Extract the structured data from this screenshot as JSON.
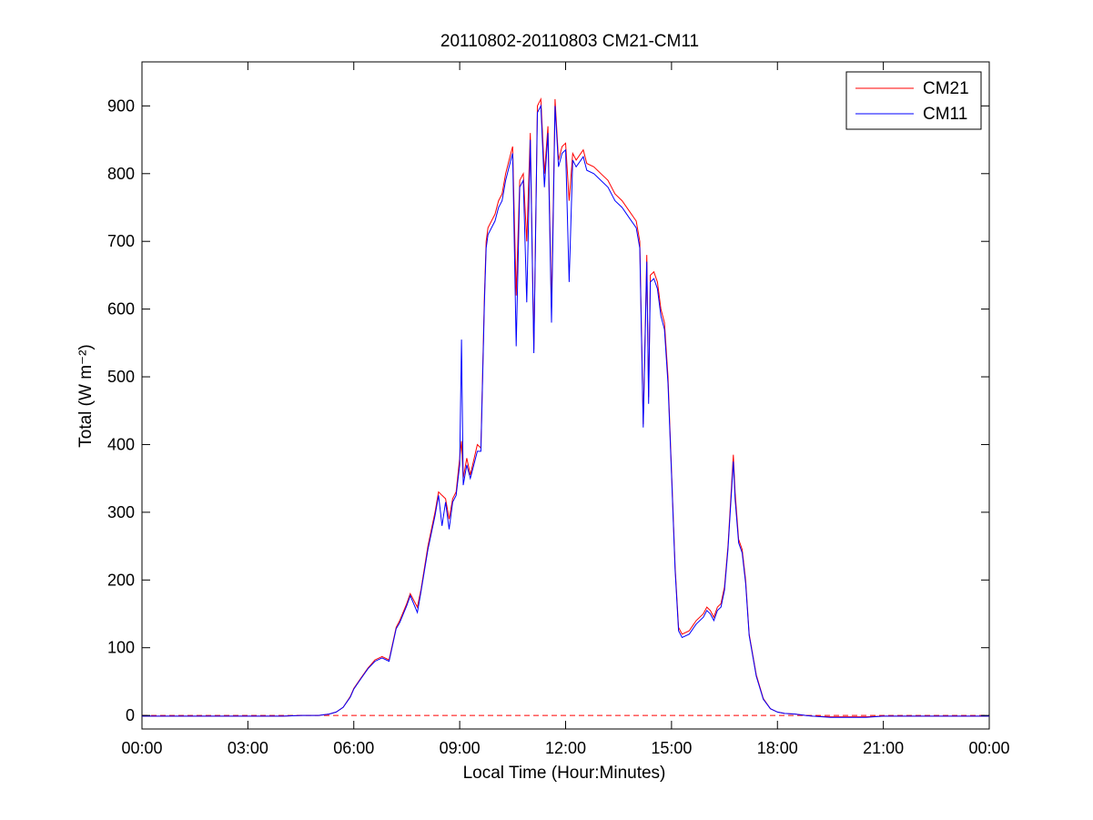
{
  "chart_data": {
    "type": "line",
    "title": "20110802-20110803 CM21-CM11",
    "xlabel": "Local Time (Hour:Minutes)",
    "ylabel": "Total (W m⁻²)",
    "xlim_hours": [
      0,
      24
    ],
    "ylim": [
      -20,
      965
    ],
    "x_ticks": [
      0,
      3,
      6,
      9,
      12,
      15,
      18,
      21,
      24
    ],
    "x_tick_labels": [
      "00:00",
      "03:00",
      "06:00",
      "09:00",
      "12:00",
      "15:00",
      "18:00",
      "21:00",
      "00:00"
    ],
    "y_ticks": [
      0,
      100,
      200,
      300,
      400,
      500,
      600,
      700,
      800,
      900
    ],
    "y_tick_labels": [
      "0",
      "100",
      "200",
      "300",
      "400",
      "500",
      "600",
      "700",
      "800",
      "900"
    ],
    "grid": false,
    "legend_position": "top-right",
    "reference_line": {
      "y": 0,
      "style": "dashed",
      "color": "#ff0000"
    },
    "series": [
      {
        "name": "CM21",
        "color": "#ff0000",
        "x": [
          0,
          1,
          2,
          3,
          4,
          4.5,
          5.0,
          5.3,
          5.5,
          5.7,
          5.9,
          6.0,
          6.2,
          6.4,
          6.6,
          6.8,
          7.0,
          7.2,
          7.3,
          7.5,
          7.6,
          7.8,
          7.9,
          8.1,
          8.3,
          8.4,
          8.5,
          8.6,
          8.7,
          8.8,
          8.9,
          9.0,
          9.05,
          9.1,
          9.2,
          9.3,
          9.5,
          9.6,
          9.7,
          9.75,
          9.8,
          10.0,
          10.1,
          10.2,
          10.3,
          10.4,
          10.5,
          10.6,
          10.7,
          10.8,
          10.9,
          11.0,
          11.1,
          11.2,
          11.3,
          11.4,
          11.5,
          11.6,
          11.7,
          11.8,
          11.9,
          12.0,
          12.1,
          12.2,
          12.3,
          12.5,
          12.6,
          12.8,
          13.0,
          13.2,
          13.4,
          13.6,
          13.8,
          14.0,
          14.1,
          14.2,
          14.3,
          14.35,
          14.4,
          14.5,
          14.6,
          14.7,
          14.8,
          14.9,
          15.0,
          15.1,
          15.2,
          15.3,
          15.5,
          15.7,
          15.9,
          16.0,
          16.1,
          16.2,
          16.3,
          16.4,
          16.5,
          16.6,
          16.75,
          16.8,
          16.9,
          17.0,
          17.1,
          17.2,
          17.4,
          17.6,
          17.8,
          18.0,
          18.2,
          18.5,
          18.8,
          19.0,
          19.5,
          20.0,
          20.5,
          21.0,
          22.0,
          23.0,
          24.0
        ],
        "values": [
          -1,
          -1,
          -1,
          -1,
          -1,
          0,
          0,
          2,
          5,
          12,
          28,
          40,
          55,
          70,
          82,
          87,
          82,
          130,
          140,
          165,
          180,
          160,
          185,
          250,
          300,
          330,
          325,
          320,
          290,
          320,
          330,
          380,
          405,
          350,
          380,
          355,
          400,
          395,
          620,
          700,
          720,
          740,
          760,
          770,
          800,
          820,
          840,
          620,
          790,
          800,
          700,
          860,
          540,
          900,
          910,
          800,
          870,
          600,
          910,
          820,
          840,
          845,
          760,
          830,
          820,
          835,
          815,
          810,
          800,
          790,
          770,
          760,
          745,
          730,
          700,
          430,
          680,
          470,
          650,
          655,
          640,
          600,
          580,
          500,
          360,
          220,
          130,
          120,
          125,
          140,
          150,
          160,
          155,
          145,
          160,
          165,
          190,
          250,
          385,
          330,
          260,
          245,
          200,
          120,
          60,
          25,
          10,
          5,
          3,
          2,
          0,
          -1,
          -2,
          -2,
          -2,
          -1,
          -1,
          -1,
          -1
        ],
        "values_note_omitted": true
      },
      {
        "name": "CM11",
        "color": "#0000ff",
        "x": [
          0,
          1,
          2,
          3,
          4,
          4.5,
          5.0,
          5.3,
          5.5,
          5.7,
          5.9,
          6.0,
          6.2,
          6.4,
          6.6,
          6.8,
          7.0,
          7.2,
          7.3,
          7.5,
          7.6,
          7.8,
          7.9,
          8.1,
          8.3,
          8.4,
          8.5,
          8.6,
          8.7,
          8.8,
          8.9,
          9.0,
          9.05,
          9.1,
          9.2,
          9.3,
          9.5,
          9.6,
          9.7,
          9.75,
          9.8,
          10.0,
          10.1,
          10.2,
          10.3,
          10.4,
          10.5,
          10.6,
          10.7,
          10.8,
          10.9,
          11.0,
          11.1,
          11.2,
          11.3,
          11.4,
          11.5,
          11.6,
          11.7,
          11.8,
          11.9,
          12.0,
          12.1,
          12.2,
          12.3,
          12.5,
          12.6,
          12.8,
          13.0,
          13.2,
          13.4,
          13.6,
          13.8,
          14.0,
          14.1,
          14.2,
          14.3,
          14.35,
          14.4,
          14.5,
          14.6,
          14.7,
          14.8,
          14.9,
          15.0,
          15.1,
          15.2,
          15.3,
          15.5,
          15.7,
          15.9,
          16.0,
          16.1,
          16.2,
          16.3,
          16.4,
          16.5,
          16.6,
          16.75,
          16.8,
          16.9,
          17.0,
          17.1,
          17.2,
          17.4,
          17.6,
          17.8,
          18.0,
          18.2,
          18.5,
          18.8,
          19.0,
          19.5,
          20.0,
          20.5,
          21.0,
          22.0,
          23.0,
          24.0
        ],
        "values": [
          -1,
          -1,
          -1,
          -1,
          -1,
          0,
          0,
          2,
          5,
          12,
          27,
          39,
          54,
          69,
          80,
          85,
          80,
          128,
          137,
          162,
          177,
          152,
          182,
          245,
          295,
          325,
          280,
          315,
          275,
          315,
          325,
          370,
          555,
          340,
          370,
          350,
          390,
          390,
          610,
          690,
          710,
          730,
          750,
          760,
          790,
          810,
          830,
          545,
          780,
          790,
          610,
          850,
          535,
          890,
          900,
          780,
          860,
          580,
          900,
          810,
          830,
          835,
          640,
          820,
          810,
          825,
          805,
          800,
          790,
          780,
          760,
          750,
          735,
          720,
          690,
          425,
          670,
          460,
          640,
          645,
          630,
          590,
          570,
          490,
          355,
          215,
          125,
          115,
          120,
          135,
          145,
          155,
          150,
          140,
          155,
          160,
          185,
          245,
          375,
          320,
          255,
          240,
          195,
          118,
          58,
          24,
          10,
          5,
          3,
          2,
          0,
          -1,
          -3,
          -3,
          -3,
          -1,
          -1,
          -1,
          -1
        ]
      }
    ]
  }
}
